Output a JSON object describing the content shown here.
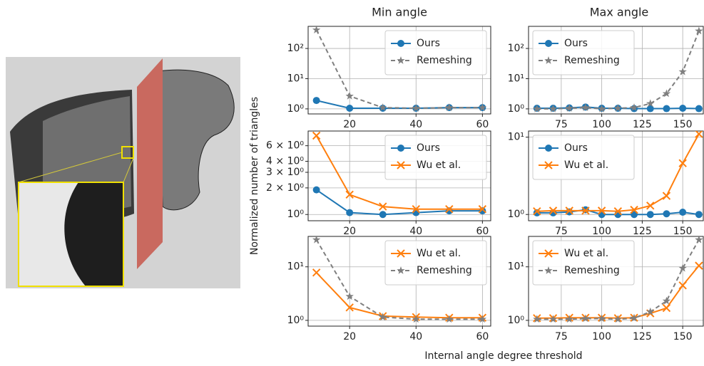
{
  "figure": {
    "column_titles": [
      "Min angle",
      "Max angle"
    ],
    "ylabel": "Normalized number of triangles",
    "xlabel": "Internal angle degree threshold"
  },
  "chart_data": [
    {
      "type": "line",
      "x": [
        10,
        20,
        30,
        40,
        50,
        60
      ],
      "xlim": [
        7.5,
        62.5
      ],
      "xticks": [
        20,
        40,
        60
      ],
      "ylim": [
        0.68,
        540
      ],
      "log_y": true,
      "yticks": [
        {
          "value": 1,
          "label": "10⁰"
        },
        {
          "value": 10,
          "label": "10¹"
        },
        {
          "value": 100,
          "label": "10²"
        }
      ],
      "grid": true,
      "legend": "upper right",
      "series": [
        {
          "name": "Ours",
          "color": "#1f77b4",
          "marker": "circle",
          "dash": false,
          "values": [
            1.9,
            1.05,
            1.05,
            1.05,
            1.1,
            1.1
          ]
        },
        {
          "name": "Remeshing",
          "color": "#7f7f7f",
          "marker": "star",
          "dash": true,
          "values": [
            410,
            2.65,
            1.1,
            1.05,
            1.1,
            1.1
          ]
        }
      ]
    },
    {
      "type": "line",
      "x": [
        60,
        70,
        80,
        90,
        100,
        110,
        120,
        130,
        140,
        150,
        160
      ],
      "xlim": [
        54.8,
        162.7
      ],
      "xticks": [
        75,
        100,
        125,
        150
      ],
      "ylim": [
        0.68,
        540
      ],
      "log_y": true,
      "yticks": [
        {
          "value": 1,
          "label": "10⁰"
        },
        {
          "value": 10,
          "label": "10¹"
        },
        {
          "value": 100,
          "label": "10²"
        }
      ],
      "grid": true,
      "legend": "upper left",
      "series": [
        {
          "name": "Ours",
          "color": "#1f77b4",
          "marker": "circle",
          "dash": false,
          "values": [
            1.05,
            1.05,
            1.08,
            1.15,
            1.05,
            1.05,
            1.02,
            1.02,
            1.02,
            1.05,
            1.02
          ]
        },
        {
          "name": "Remeshing",
          "color": "#7f7f7f",
          "marker": "star",
          "dash": true,
          "values": [
            1.0,
            1.0,
            1.05,
            1.1,
            1.0,
            1.05,
            1.1,
            1.5,
            3.2,
            17,
            380
          ]
        }
      ]
    },
    {
      "type": "line",
      "x": [
        10,
        20,
        30,
        40,
        50,
        60
      ],
      "xlim": [
        7.5,
        62.5
      ],
      "xticks": [
        20,
        40,
        60
      ],
      "ylim": [
        0.85,
        8.8
      ],
      "log_y": true,
      "yticks": [
        {
          "value": 1,
          "label": "10⁰"
        },
        {
          "value": 2,
          "label": "2 × 10⁰"
        },
        {
          "value": 3,
          "label": "3 × 10⁰"
        },
        {
          "value": 4,
          "label": "4 × 10⁰"
        },
        {
          "value": 6,
          "label": "6 × 10⁰"
        }
      ],
      "grid": true,
      "legend": "upper right",
      "series": [
        {
          "name": "Ours",
          "color": "#1f77b4",
          "marker": "circle",
          "dash": false,
          "values": [
            1.9,
            1.05,
            1.0,
            1.05,
            1.1,
            1.1
          ]
        },
        {
          "name": "Wu et al.",
          "color": "#ff7f0e",
          "marker": "x",
          "dash": false,
          "values": [
            7.8,
            1.68,
            1.23,
            1.15,
            1.15,
            1.15
          ]
        }
      ]
    },
    {
      "type": "line",
      "x": [
        60,
        70,
        80,
        90,
        100,
        110,
        120,
        130,
        140,
        150,
        160
      ],
      "xlim": [
        54.8,
        162.7
      ],
      "xticks": [
        75,
        100,
        125,
        150
      ],
      "ylim": [
        0.83,
        12
      ],
      "log_y": true,
      "yticks": [
        {
          "value": 1,
          "label": "10⁰"
        },
        {
          "value": 10,
          "label": "10¹"
        }
      ],
      "grid": true,
      "legend": "upper left",
      "series": [
        {
          "name": "Ours",
          "color": "#1f77b4",
          "marker": "circle",
          "dash": false,
          "values": [
            1.05,
            1.05,
            1.08,
            1.15,
            1.0,
            1.0,
            1.0,
            1.0,
            1.02,
            1.07,
            1.0
          ]
        },
        {
          "name": "Wu et al.",
          "color": "#ff7f0e",
          "marker": "x",
          "dash": false,
          "values": [
            1.1,
            1.12,
            1.12,
            1.12,
            1.12,
            1.1,
            1.15,
            1.3,
            1.74,
            4.6,
            11
          ]
        }
      ]
    },
    {
      "type": "line",
      "x": [
        10,
        20,
        30,
        40,
        50,
        60
      ],
      "xlim": [
        7.5,
        62.5
      ],
      "xticks": [
        20,
        40,
        60
      ],
      "ylim": [
        0.78,
        37
      ],
      "log_y": true,
      "yticks": [
        {
          "value": 1,
          "label": "10⁰"
        },
        {
          "value": 10,
          "label": "10¹"
        }
      ],
      "grid": true,
      "legend": "upper right",
      "series": [
        {
          "name": "Wu et al.",
          "color": "#ff7f0e",
          "marker": "x",
          "dash": false,
          "values": [
            7.8,
            1.74,
            1.2,
            1.15,
            1.12,
            1.12
          ]
        },
        {
          "name": "Remeshing",
          "color": "#7f7f7f",
          "marker": "star",
          "dash": true,
          "values": [
            32,
            2.8,
            1.15,
            1.05,
            1.05,
            1.05
          ]
        }
      ]
    },
    {
      "type": "line",
      "x": [
        60,
        70,
        80,
        90,
        100,
        110,
        120,
        130,
        140,
        150,
        160
      ],
      "xlim": [
        54.8,
        162.7
      ],
      "xticks": [
        75,
        100,
        125,
        150
      ],
      "ylim": [
        0.78,
        37
      ],
      "log_y": true,
      "yticks": [
        {
          "value": 1,
          "label": "10⁰"
        },
        {
          "value": 10,
          "label": "10¹"
        }
      ],
      "grid": true,
      "legend": "upper left",
      "series": [
        {
          "name": "Wu et al.",
          "color": "#ff7f0e",
          "marker": "x",
          "dash": false,
          "values": [
            1.1,
            1.1,
            1.12,
            1.12,
            1.12,
            1.1,
            1.12,
            1.35,
            1.7,
            4.5,
            10.5
          ]
        },
        {
          "name": "Remeshing",
          "color": "#7f7f7f",
          "marker": "star",
          "dash": true,
          "values": [
            1.05,
            1.05,
            1.05,
            1.08,
            1.08,
            1.05,
            1.1,
            1.45,
            2.3,
            9.4,
            32
          ]
        }
      ]
    }
  ]
}
